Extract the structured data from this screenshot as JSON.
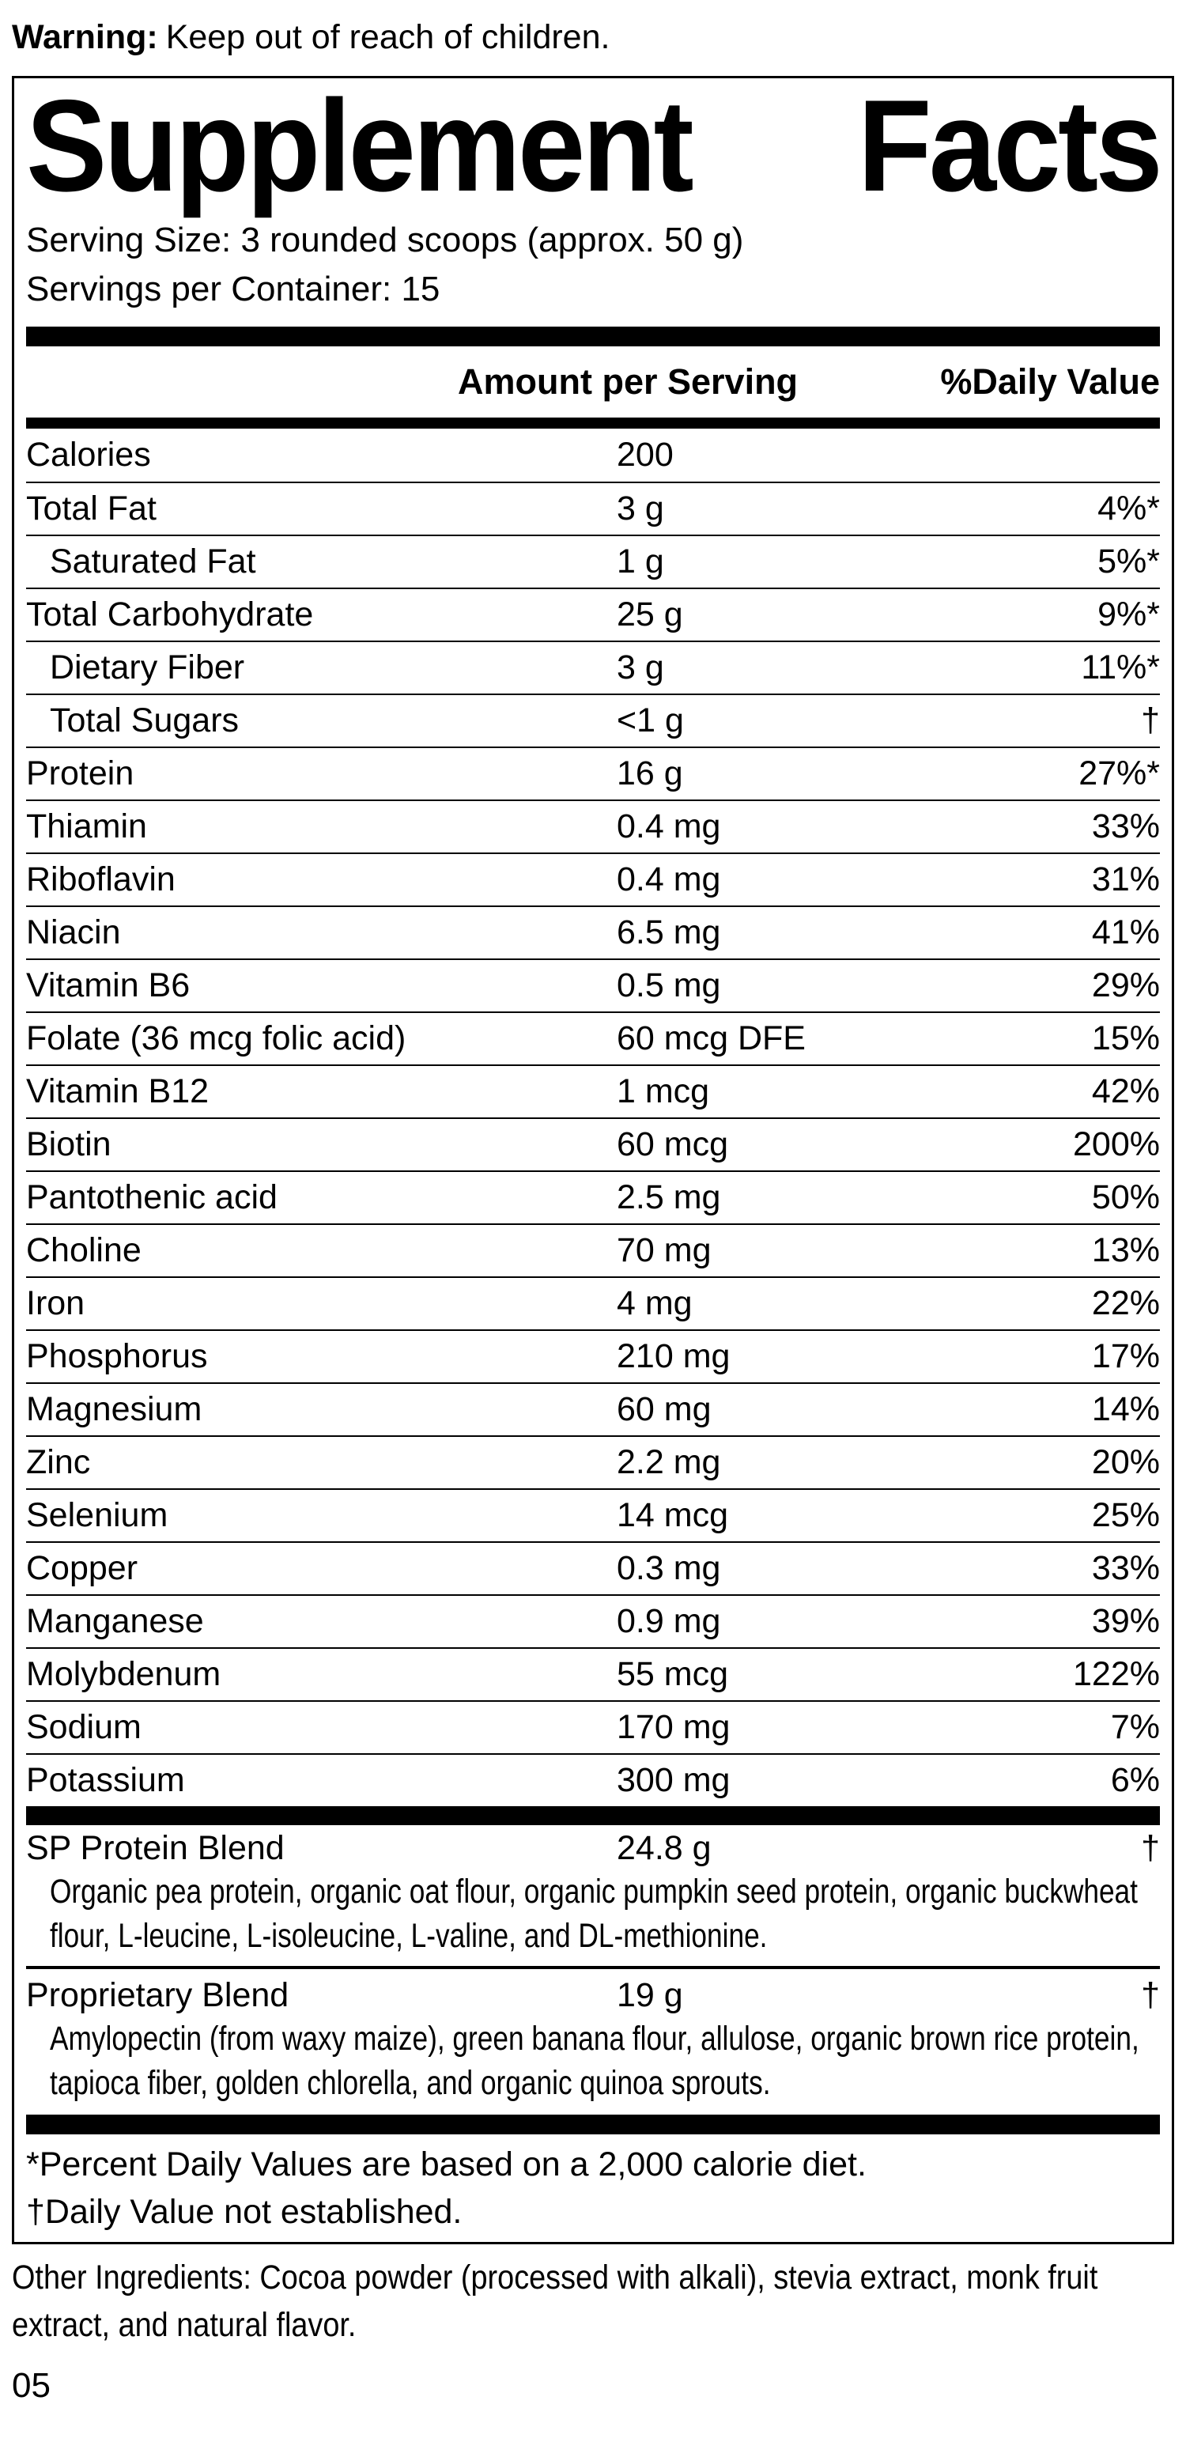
{
  "warning": {
    "label": "Warning:",
    "text": "Keep out of reach of children."
  },
  "panel": {
    "title_word1": "Supplement",
    "title_word2": "Facts",
    "serving_size": "Serving Size: 3 rounded scoops (approx. 50 g)",
    "servings_per_container": "Servings per Container: 15",
    "header": {
      "amount": "Amount per Serving",
      "dv": "%Daily Value"
    },
    "rows": [
      {
        "label": "Calories",
        "amount": "200",
        "dv": "",
        "indent": false
      },
      {
        "label": "Total Fat",
        "amount": "3 g",
        "dv": "4%*",
        "indent": false
      },
      {
        "label": "Saturated Fat",
        "amount": "1 g",
        "dv": "5%*",
        "indent": true
      },
      {
        "label": "Total Carbohydrate",
        "amount": "25 g",
        "dv": "9%*",
        "indent": false
      },
      {
        "label": "Dietary Fiber",
        "amount": "3 g",
        "dv": "11%*",
        "indent": true
      },
      {
        "label": "Total Sugars",
        "amount": "<1 g",
        "dv": "†",
        "indent": true
      },
      {
        "label": "Protein",
        "amount": "16 g",
        "dv": "27%*",
        "indent": false
      },
      {
        "label": "Thiamin",
        "amount": "0.4 mg",
        "dv": "33%",
        "indent": false
      },
      {
        "label": "Riboflavin",
        "amount": "0.4 mg",
        "dv": "31%",
        "indent": false
      },
      {
        "label": "Niacin",
        "amount": "6.5 mg",
        "dv": "41%",
        "indent": false
      },
      {
        "label": "Vitamin B6",
        "amount": "0.5 mg",
        "dv": "29%",
        "indent": false
      },
      {
        "label": "Folate (36 mcg folic acid)",
        "amount": "60 mcg DFE",
        "dv": "15%",
        "indent": false
      },
      {
        "label": "Vitamin B12",
        "amount": "1 mcg",
        "dv": "42%",
        "indent": false
      },
      {
        "label": "Biotin",
        "amount": "60 mcg",
        "dv": "200%",
        "indent": false
      },
      {
        "label": "Pantothenic acid",
        "amount": "2.5 mg",
        "dv": "50%",
        "indent": false
      },
      {
        "label": "Choline",
        "amount": "70 mg",
        "dv": "13%",
        "indent": false
      },
      {
        "label": "Iron",
        "amount": "4 mg",
        "dv": "22%",
        "indent": false
      },
      {
        "label": "Phosphorus",
        "amount": "210 mg",
        "dv": "17%",
        "indent": false
      },
      {
        "label": "Magnesium",
        "amount": "60 mg",
        "dv": "14%",
        "indent": false
      },
      {
        "label": "Zinc",
        "amount": "2.2 mg",
        "dv": "20%",
        "indent": false
      },
      {
        "label": "Selenium",
        "amount": "14 mcg",
        "dv": "25%",
        "indent": false
      },
      {
        "label": "Copper",
        "amount": "0.3 mg",
        "dv": "33%",
        "indent": false
      },
      {
        "label": "Manganese",
        "amount": "0.9 mg",
        "dv": "39%",
        "indent": false
      },
      {
        "label": "Molybdenum",
        "amount": "55 mcg",
        "dv": "122%",
        "indent": false
      },
      {
        "label": "Sodium",
        "amount": "170 mg",
        "dv": "7%",
        "indent": false
      },
      {
        "label": "Potassium",
        "amount": "300 mg",
        "dv": "6%",
        "indent": false
      }
    ],
    "blends": [
      {
        "label": "SP Protein Blend",
        "amount": "24.8 g",
        "dv": "†",
        "description": "Organic pea protein, organic oat flour, organic pumpkin seed protein, organic buckwheat flour, L-leucine, L-isoleucine, L-valine, and DL-methionine."
      },
      {
        "label": "Proprietary Blend",
        "amount": "19 g",
        "dv": "†",
        "description": "Amylopectin (from waxy maize), green banana flour, allulose, organic brown rice protein, tapioca fiber, golden chlorella, and organic quinoa sprouts."
      }
    ],
    "footnotes": [
      "*Percent Daily Values are based on a 2,000 calorie diet.",
      "†Daily Value not established."
    ]
  },
  "other_ingredients": "Other Ingredients: Cocoa powder (processed with alkali), stevia extract, monk fruit extract, and natural flavor.",
  "page_number": "05",
  "colors": {
    "ink": "#000000",
    "background": "#ffffff"
  }
}
